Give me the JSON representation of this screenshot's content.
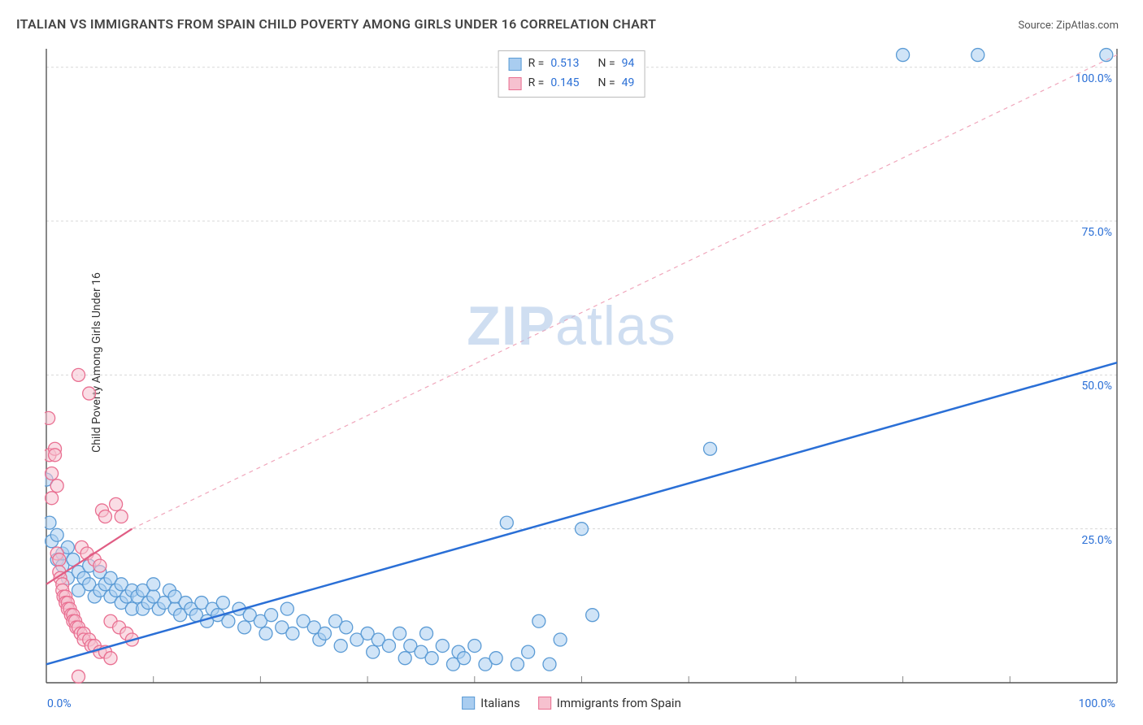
{
  "title": "ITALIAN VS IMMIGRANTS FROM SPAIN CHILD POVERTY AMONG GIRLS UNDER 16 CORRELATION CHART",
  "source": "Source: ZipAtlas.com",
  "ylabel": "Child Poverty Among Girls Under 16",
  "watermark_a": "ZIP",
  "watermark_b": "atlas",
  "chart": {
    "type": "scatter",
    "xlim": [
      0,
      100
    ],
    "ylim": [
      0,
      103
    ],
    "xticks": [
      0,
      10,
      20,
      30,
      40,
      50,
      60,
      70,
      80,
      90,
      100
    ],
    "yticks": [
      25,
      50,
      75,
      100
    ],
    "ytick_labels": [
      "25.0%",
      "50.0%",
      "75.0%",
      "100.0%"
    ],
    "xaxis_min_label": "0.0%",
    "xaxis_max_label": "100.0%",
    "grid_color": "#d8d8d8",
    "axis_color": "#555",
    "background": "#ffffff",
    "marker_radius": 8,
    "marker_stroke_width": 1.3,
    "series": [
      {
        "name": "Italians",
        "fill": "#a9cdf0",
        "stroke": "#5b9bd5",
        "fill_opacity": 0.55,
        "trend": {
          "x1": 0,
          "y1": 3,
          "x2": 100,
          "y2": 52,
          "stroke": "#2a6fd6",
          "width": 2.5,
          "dash": null
        },
        "r": "0.513",
        "n": "94",
        "points": [
          [
            0,
            33
          ],
          [
            0.3,
            26
          ],
          [
            0.5,
            23
          ],
          [
            1,
            24
          ],
          [
            1,
            20
          ],
          [
            1.5,
            19
          ],
          [
            1.5,
            21
          ],
          [
            2,
            22
          ],
          [
            2,
            17
          ],
          [
            2.5,
            20
          ],
          [
            3,
            18
          ],
          [
            3,
            15
          ],
          [
            3.5,
            17
          ],
          [
            4,
            19
          ],
          [
            4,
            16
          ],
          [
            4.5,
            14
          ],
          [
            5,
            18
          ],
          [
            5,
            15
          ],
          [
            5.5,
            16
          ],
          [
            6,
            17
          ],
          [
            6,
            14
          ],
          [
            6.5,
            15
          ],
          [
            7,
            16
          ],
          [
            7,
            13
          ],
          [
            7.5,
            14
          ],
          [
            8,
            15
          ],
          [
            8,
            12
          ],
          [
            8.5,
            14
          ],
          [
            9,
            15
          ],
          [
            9,
            12
          ],
          [
            9.5,
            13
          ],
          [
            10,
            14
          ],
          [
            10,
            16
          ],
          [
            10.5,
            12
          ],
          [
            11,
            13
          ],
          [
            11.5,
            15
          ],
          [
            12,
            12
          ],
          [
            12,
            14
          ],
          [
            12.5,
            11
          ],
          [
            13,
            13
          ],
          [
            13.5,
            12
          ],
          [
            14,
            11
          ],
          [
            14.5,
            13
          ],
          [
            15,
            10
          ],
          [
            15.5,
            12
          ],
          [
            16,
            11
          ],
          [
            16.5,
            13
          ],
          [
            17,
            10
          ],
          [
            18,
            12
          ],
          [
            18.5,
            9
          ],
          [
            19,
            11
          ],
          [
            20,
            10
          ],
          [
            20.5,
            8
          ],
          [
            21,
            11
          ],
          [
            22,
            9
          ],
          [
            22.5,
            12
          ],
          [
            23,
            8
          ],
          [
            24,
            10
          ],
          [
            25,
            9
          ],
          [
            25.5,
            7
          ],
          [
            26,
            8
          ],
          [
            27,
            10
          ],
          [
            27.5,
            6
          ],
          [
            28,
            9
          ],
          [
            29,
            7
          ],
          [
            30,
            8
          ],
          [
            30.5,
            5
          ],
          [
            31,
            7
          ],
          [
            32,
            6
          ],
          [
            33,
            8
          ],
          [
            33.5,
            4
          ],
          [
            34,
            6
          ],
          [
            35,
            5
          ],
          [
            35.5,
            8
          ],
          [
            36,
            4
          ],
          [
            37,
            6
          ],
          [
            38,
            3
          ],
          [
            38.5,
            5
          ],
          [
            39,
            4
          ],
          [
            40,
            6
          ],
          [
            41,
            3
          ],
          [
            42,
            4
          ],
          [
            43,
            26
          ],
          [
            44,
            3
          ],
          [
            45,
            5
          ],
          [
            46,
            10
          ],
          [
            47,
            3
          ],
          [
            48,
            7
          ],
          [
            50,
            25
          ],
          [
            51,
            11
          ],
          [
            62,
            38
          ],
          [
            80,
            102
          ],
          [
            87,
            102
          ],
          [
            99,
            102
          ]
        ]
      },
      {
        "name": "Immigrants from Spain",
        "fill": "#f6c1cf",
        "stroke": "#e96f91",
        "fill_opacity": 0.55,
        "trend": {
          "x1": 0,
          "y1": 16,
          "x2": 8,
          "y2": 25,
          "stroke": "#e05d84",
          "width": 2.2,
          "dash": null
        },
        "trend_ext": {
          "x1": 8,
          "y1": 25,
          "x2": 100,
          "y2": 102,
          "stroke": "#f0a6bb",
          "width": 1.2,
          "dash": "5,5"
        },
        "r": "0.145",
        "n": "49",
        "points": [
          [
            0.2,
            43
          ],
          [
            0.3,
            37
          ],
          [
            0.5,
            34
          ],
          [
            0.5,
            30
          ],
          [
            0.8,
            38
          ],
          [
            0.8,
            37
          ],
          [
            1,
            32
          ],
          [
            1,
            21
          ],
          [
            1.2,
            20
          ],
          [
            1.2,
            18
          ],
          [
            1.3,
            17
          ],
          [
            1.5,
            16
          ],
          [
            1.5,
            15
          ],
          [
            1.6,
            14
          ],
          [
            1.8,
            14
          ],
          [
            1.8,
            13
          ],
          [
            2,
            13
          ],
          [
            2,
            12
          ],
          [
            2.2,
            12
          ],
          [
            2.3,
            11
          ],
          [
            2.5,
            11
          ],
          [
            2.5,
            10
          ],
          [
            2.7,
            10
          ],
          [
            2.8,
            9
          ],
          [
            3,
            50
          ],
          [
            3,
            9
          ],
          [
            3.2,
            8
          ],
          [
            3.3,
            22
          ],
          [
            3.5,
            8
          ],
          [
            3.5,
            7
          ],
          [
            3.8,
            21
          ],
          [
            4,
            47
          ],
          [
            4,
            7
          ],
          [
            4.2,
            6
          ],
          [
            4.5,
            20
          ],
          [
            4.5,
            6
          ],
          [
            5,
            5
          ],
          [
            5,
            19
          ],
          [
            5.2,
            28
          ],
          [
            5.5,
            5
          ],
          [
            5.5,
            27
          ],
          [
            6,
            4
          ],
          [
            6,
            10
          ],
          [
            6.5,
            29
          ],
          [
            6.8,
            9
          ],
          [
            7,
            27
          ],
          [
            7.5,
            8
          ],
          [
            8,
            7
          ],
          [
            3,
            1
          ]
        ]
      }
    ]
  },
  "legend_bottom": [
    {
      "label": "Italians",
      "fill": "#a9cdf0",
      "stroke": "#5b9bd5"
    },
    {
      "label": "Immigrants from Spain",
      "fill": "#f6c1cf",
      "stroke": "#e96f91"
    }
  ]
}
